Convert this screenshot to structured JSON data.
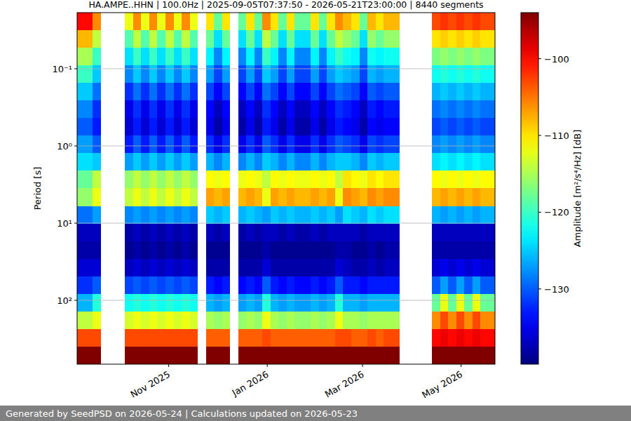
{
  "chart_data": {
    "type": "heatmap",
    "title": "HA.AMPE..HHN | 100.0Hz | 2025-09-05T07:37:50 - 2026-05-21T23:00:00 | 8440 segments",
    "y_label": "Period [s]",
    "x_bins": [
      "2025-09-05T07:37:50",
      "2025-09-10",
      "2025-09-15",
      "2025-09-20",
      "2025-09-25",
      "2025-09-30",
      "2025-10-05",
      "2025-10-10",
      "2025-10-15",
      "2025-10-20",
      "2025-10-25",
      "2025-10-30",
      "2025-11-04",
      "2025-11-09",
      "2025-11-14",
      "2025-11-19",
      "2025-11-24",
      "2025-11-29",
      "2025-12-04",
      "2025-12-09",
      "2025-12-14",
      "2025-12-19",
      "2025-12-24",
      "2025-12-29",
      "2026-01-03",
      "2026-01-08",
      "2026-01-13",
      "2026-01-18",
      "2026-01-23",
      "2026-01-28",
      "2026-02-02",
      "2026-02-07",
      "2026-02-12",
      "2026-02-17",
      "2026-02-22",
      "2026-02-27",
      "2026-03-04",
      "2026-03-09",
      "2026-03-14",
      "2026-03-19",
      "2026-03-24",
      "2026-03-29",
      "2026-04-03",
      "2026-04-08",
      "2026-04-13",
      "2026-04-18",
      "2026-04-23",
      "2026-04-28",
      "2026-05-03",
      "2026-05-08",
      "2026-05-13",
      "2026-05-18",
      "2026-05-21T23:00:00"
    ],
    "y_bins": [
      0.01875,
      0.03168,
      0.05352,
      0.0904,
      0.1527,
      0.2579,
      0.4357,
      0.7361,
      1.243,
      2.1,
      3.548,
      5.995,
      10.12,
      17.11,
      28.9,
      48.82,
      82.47,
      139.3,
      235.3,
      397.5,
      671.5
    ],
    "values": [
      [
        -100,
        -108,
        -115,
        -120,
        -125,
        -128,
        -130,
        -127,
        -124,
        -118,
        -116,
        -129,
        -137,
        -138,
        -136,
        -132,
        -126,
        -114,
        -103,
        -93
      ],
      [
        -100,
        -108,
        -115,
        -120,
        -125,
        -128,
        -130,
        -127,
        -124,
        -118,
        -116,
        -129,
        -137,
        -138,
        -136,
        -132,
        -126,
        -114,
        -103,
        -93
      ],
      [
        -106,
        -114,
        -120,
        -125,
        -129,
        -132,
        -133,
        -130,
        -125,
        -114,
        -112,
        -127,
        -137,
        -138,
        -136,
        -130,
        -121,
        -112,
        -103,
        -93
      ],
      null,
      null,
      null,
      [
        -112,
        -119,
        -124,
        -128,
        -132,
        -135,
        -136,
        -133,
        -127,
        -116,
        -114,
        -128,
        -138,
        -139,
        -137,
        -131,
        -122,
        -113,
        -103,
        -93
      ],
      [
        -106,
        -114,
        -120,
        -125,
        -129,
        -132,
        -133,
        -130,
        -125,
        -114,
        -112,
        -127,
        -137,
        -138,
        -136,
        -130,
        -121,
        -112,
        -103,
        -93
      ],
      [
        -112,
        -119,
        -124,
        -128,
        -132,
        -135,
        -136,
        -133,
        -127,
        -116,
        -114,
        -128,
        -138,
        -139,
        -137,
        -131,
        -122,
        -113,
        -103,
        -93
      ],
      [
        -106,
        -114,
        -120,
        -125,
        -129,
        -132,
        -133,
        -130,
        -125,
        -114,
        -112,
        -127,
        -137,
        -138,
        -136,
        -130,
        -121,
        -112,
        -103,
        -93
      ],
      [
        -112,
        -119,
        -124,
        -128,
        -132,
        -135,
        -136,
        -133,
        -127,
        -116,
        -114,
        -128,
        -138,
        -139,
        -137,
        -131,
        -122,
        -113,
        -103,
        -93
      ],
      [
        -106,
        -114,
        -120,
        -125,
        -129,
        -132,
        -133,
        -130,
        -125,
        -114,
        -112,
        -127,
        -137,
        -138,
        -136,
        -130,
        -121,
        -112,
        -103,
        -93
      ],
      [
        -112,
        -119,
        -124,
        -128,
        -132,
        -135,
        -136,
        -133,
        -127,
        -116,
        -114,
        -128,
        -138,
        -139,
        -137,
        -131,
        -122,
        -113,
        -103,
        -93
      ],
      [
        -106,
        -114,
        -120,
        -125,
        -129,
        -132,
        -133,
        -130,
        -125,
        -114,
        -112,
        -127,
        -137,
        -138,
        -136,
        -130,
        -121,
        -112,
        -103,
        -93
      ],
      [
        -112,
        -119,
        -124,
        -128,
        -132,
        -135,
        -136,
        -133,
        -127,
        -116,
        -114,
        -128,
        -138,
        -139,
        -137,
        -131,
        -122,
        -113,
        -103,
        -93
      ],
      null,
      [
        -110,
        -118,
        -123,
        -127,
        -131,
        -134,
        -135,
        -132,
        -126,
        -111,
        -107,
        -125,
        -137,
        -139,
        -138,
        -133,
        -126,
        -115,
        -104,
        -93
      ],
      [
        -118,
        -124,
        -128,
        -131,
        -134,
        -137,
        -138,
        -135,
        -128,
        -112,
        -108,
        -126,
        -138,
        -139,
        -138,
        -134,
        -127,
        -116,
        -104,
        -93
      ],
      [
        -110,
        -118,
        -123,
        -127,
        -131,
        -134,
        -135,
        -132,
        -126,
        -111,
        -107,
        -125,
        -137,
        -139,
        -138,
        -133,
        -126,
        -115,
        -104,
        -93
      ],
      null,
      [
        -118,
        -124,
        -128,
        -131,
        -134,
        -137,
        -138,
        -135,
        -128,
        -112,
        -108,
        -126,
        -138,
        -139,
        -138,
        -134,
        -127,
        -116,
        -104,
        -93
      ],
      [
        -110,
        -118,
        -123,
        -127,
        -131,
        -134,
        -135,
        -132,
        -126,
        -111,
        -107,
        -125,
        -137,
        -139,
        -138,
        -133,
        -126,
        -115,
        -104,
        -93
      ],
      [
        -118,
        -124,
        -128,
        -131,
        -134,
        -137,
        -138,
        -135,
        -128,
        -112,
        -108,
        -126,
        -138,
        -139,
        -138,
        -134,
        -127,
        -116,
        -104,
        -93
      ],
      [
        -106,
        -114,
        -120,
        -125,
        -129,
        -132,
        -133,
        -130,
        -125,
        -114,
        -112,
        -127,
        -137,
        -138,
        -136,
        -130,
        -121,
        -112,
        -103,
        -93
      ],
      [
        -110,
        -118,
        -123,
        -127,
        -131,
        -134,
        -135,
        -132,
        -126,
        -111,
        -107,
        -125,
        -137,
        -139,
        -138,
        -133,
        -126,
        -115,
        -104,
        -93
      ],
      [
        -118,
        -124,
        -128,
        -131,
        -134,
        -137,
        -138,
        -135,
        -128,
        -112,
        -108,
        -126,
        -138,
        -139,
        -138,
        -134,
        -127,
        -116,
        -104,
        -93
      ],
      [
        -110,
        -118,
        -123,
        -127,
        -131,
        -134,
        -135,
        -132,
        -126,
        -111,
        -107,
        -125,
        -137,
        -139,
        -138,
        -133,
        -126,
        -115,
        -104,
        -93
      ],
      [
        -118,
        -124,
        -128,
        -131,
        -134,
        -137,
        -138,
        -135,
        -128,
        -112,
        -108,
        -126,
        -138,
        -139,
        -138,
        -134,
        -127,
        -116,
        -104,
        -93
      ],
      [
        -118,
        -124,
        -128,
        -131,
        -134,
        -137,
        -138,
        -135,
        -128,
        -112,
        -108,
        -126,
        -138,
        -139,
        -138,
        -134,
        -127,
        -116,
        -104,
        -93
      ],
      [
        -110,
        -118,
        -123,
        -127,
        -131,
        -134,
        -135,
        -132,
        -126,
        -111,
        -107,
        -125,
        -137,
        -139,
        -138,
        -133,
        -126,
        -115,
        -104,
        -93
      ],
      [
        -118,
        -124,
        -128,
        -131,
        -134,
        -137,
        -138,
        -135,
        -128,
        -112,
        -108,
        -126,
        -138,
        -139,
        -138,
        -134,
        -127,
        -116,
        -104,
        -93
      ],
      [
        -110,
        -118,
        -123,
        -127,
        -131,
        -134,
        -135,
        -132,
        -126,
        -111,
        -107,
        -125,
        -137,
        -139,
        -138,
        -133,
        -126,
        -115,
        -104,
        -93
      ],
      [
        -106,
        -114,
        -120,
        -125,
        -129,
        -132,
        -133,
        -130,
        -125,
        -114,
        -112,
        -127,
        -137,
        -138,
        -136,
        -130,
        -121,
        -112,
        -103,
        -93
      ],
      [
        -108,
        -116,
        -122,
        -126,
        -130,
        -133,
        -134,
        -131,
        -125,
        -110,
        -106,
        -124,
        -137,
        -138,
        -137,
        -133,
        -126,
        -115,
        -103,
        -93
      ],
      [
        -110,
        -118,
        -123,
        -127,
        -131,
        -134,
        -135,
        -132,
        -126,
        -111,
        -107,
        -125,
        -137,
        -139,
        -138,
        -133,
        -126,
        -115,
        -104,
        -93
      ],
      [
        -118,
        -124,
        -128,
        -131,
        -134,
        -137,
        -138,
        -135,
        -128,
        -112,
        -108,
        -126,
        -138,
        -139,
        -138,
        -134,
        -127,
        -116,
        -104,
        -93
      ],
      [
        -108,
        -116,
        -122,
        -126,
        -130,
        -133,
        -134,
        -131,
        -125,
        -110,
        -106,
        -124,
        -137,
        -138,
        -137,
        -133,
        -126,
        -115,
        -103,
        -93
      ],
      [
        -110,
        -118,
        -123,
        -127,
        -131,
        -134,
        -135,
        -132,
        -126,
        -111,
        -107,
        -125,
        -137,
        -139,
        -138,
        -133,
        -126,
        -115,
        -104,
        -93
      ],
      [
        -108,
        -116,
        -122,
        -126,
        -130,
        -133,
        -134,
        -131,
        -125,
        -110,
        -106,
        -124,
        -137,
        -138,
        -137,
        -133,
        -126,
        -115,
        -103,
        -93
      ],
      [
        -108,
        -116,
        -122,
        -126,
        -130,
        -133,
        -134,
        -131,
        -125,
        -110,
        -106,
        -124,
        -137,
        -138,
        -137,
        -133,
        -126,
        -115,
        -103,
        -93
      ],
      null,
      null,
      null,
      null,
      [
        -103,
        -110,
        -117,
        -122,
        -126,
        -129,
        -131,
        -128,
        -124,
        -111,
        -108,
        -126,
        -137,
        -138,
        -136,
        -130,
        -118,
        -106,
        -100,
        -93
      ],
      [
        -102,
        -109,
        -116,
        -121,
        -125,
        -128,
        -130,
        -127,
        -123,
        -112,
        -107,
        -127,
        -137,
        -138,
        -135,
        -127,
        -112,
        -103,
        -99,
        -93
      ],
      [
        -103,
        -110,
        -117,
        -122,
        -126,
        -129,
        -131,
        -128,
        -124,
        -111,
        -108,
        -126,
        -137,
        -138,
        -136,
        -130,
        -118,
        -106,
        -100,
        -93
      ],
      [
        -102,
        -109,
        -116,
        -121,
        -125,
        -128,
        -130,
        -127,
        -123,
        -112,
        -107,
        -127,
        -137,
        -138,
        -135,
        -127,
        -112,
        -103,
        -99,
        -93
      ],
      [
        -103,
        -110,
        -117,
        -122,
        -126,
        -129,
        -131,
        -128,
        -124,
        -111,
        -108,
        -126,
        -137,
        -138,
        -136,
        -130,
        -118,
        -106,
        -100,
        -93
      ],
      [
        -102,
        -109,
        -116,
        -121,
        -125,
        -128,
        -130,
        -127,
        -123,
        -112,
        -107,
        -127,
        -137,
        -138,
        -135,
        -127,
        -112,
        -103,
        -99,
        -93
      ],
      [
        -103,
        -110,
        -117,
        -122,
        -126,
        -129,
        -131,
        -128,
        -124,
        -111,
        -108,
        -126,
        -137,
        -138,
        -136,
        -130,
        -118,
        -106,
        -100,
        -93
      ],
      [
        -103,
        -110,
        -117,
        -122,
        -126,
        -129,
        -131,
        -128,
        -124,
        -111,
        -108,
        -126,
        -137,
        -138,
        -136,
        -130,
        -118,
        -106,
        -100,
        -93
      ]
    ],
    "xlim": [
      "2025-09-05T07:37:50",
      "2026-05-21T23:00:00"
    ],
    "ylim": [
      0.01875,
      671.5
    ],
    "xticks": [
      {
        "value": "2025-11-01",
        "label": "Nov 2025"
      },
      {
        "value": "2026-01-01",
        "label": "Jan 2026"
      },
      {
        "value": "2026-03-01",
        "label": "Mar 2026"
      },
      {
        "value": "2026-05-01",
        "label": "May 2026"
      }
    ],
    "yticks": [
      {
        "value": 0.1,
        "label": "10⁻¹"
      },
      {
        "value": 1,
        "label": "10⁰"
      },
      {
        "value": 10,
        "label": "10¹"
      },
      {
        "value": 100,
        "label": "10²"
      }
    ],
    "log": "y",
    "grid": "y",
    "colorbar": {
      "label": "Amplitude [m²/s⁴/Hz] [dB]",
      "range": [
        -139.8,
        -94
      ],
      "ticks": [
        {
          "value": -130,
          "label": "−130"
        },
        {
          "value": -120,
          "label": "−120"
        },
        {
          "value": -110,
          "label": "−110"
        },
        {
          "value": -100,
          "label": "−100"
        }
      ]
    }
  },
  "footer": "Generated by SeedPSD on 2026-05-24 | Calculations updated on 2026-05-23"
}
